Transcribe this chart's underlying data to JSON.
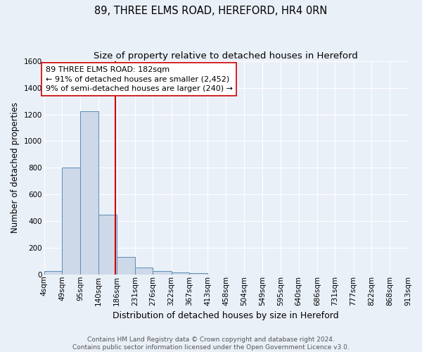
{
  "title": "89, THREE ELMS ROAD, HEREFORD, HR4 0RN",
  "subtitle": "Size of property relative to detached houses in Hereford",
  "xlabel": "Distribution of detached houses by size in Hereford",
  "ylabel": "Number of detached properties",
  "footer_line1": "Contains HM Land Registry data © Crown copyright and database right 2024.",
  "footer_line2": "Contains public sector information licensed under the Open Government Licence v3.0.",
  "bin_labels": [
    "4sqm",
    "49sqm",
    "95sqm",
    "140sqm",
    "186sqm",
    "231sqm",
    "276sqm",
    "322sqm",
    "367sqm",
    "413sqm",
    "458sqm",
    "504sqm",
    "549sqm",
    "595sqm",
    "640sqm",
    "686sqm",
    "731sqm",
    "777sqm",
    "822sqm",
    "868sqm",
    "913sqm"
  ],
  "bar_heights": [
    25,
    800,
    1225,
    450,
    130,
    55,
    25,
    15,
    10,
    0,
    0,
    0,
    0,
    0,
    0,
    0,
    0,
    0,
    0,
    0
  ],
  "bin_edges": [
    4,
    49,
    95,
    140,
    186,
    231,
    276,
    322,
    367,
    413,
    458,
    504,
    549,
    595,
    640,
    686,
    731,
    777,
    822,
    868,
    913
  ],
  "property_value": 182,
  "annotation_line1": "89 THREE ELMS ROAD: 182sqm",
  "annotation_line2": "← 91% of detached houses are smaller (2,452)",
  "annotation_line3": "9% of semi-detached houses are larger (240) →",
  "vline_color": "#cc0000",
  "bar_facecolor": "#cdd9e8",
  "bar_edgecolor": "#5b8db8",
  "annotation_box_facecolor": "#ffffff",
  "annotation_box_edgecolor": "#cc0000",
  "ylim": [
    0,
    1600
  ],
  "yticks": [
    0,
    200,
    400,
    600,
    800,
    1000,
    1200,
    1400,
    1600
  ],
  "background_color": "#eaf0f8",
  "grid_color": "#ffffff",
  "title_fontsize": 10.5,
  "subtitle_fontsize": 9.5,
  "annotation_fontsize": 8.0,
  "ylabel_fontsize": 8.5,
  "xlabel_fontsize": 9,
  "tick_fontsize": 7.5,
  "footer_fontsize": 6.5
}
